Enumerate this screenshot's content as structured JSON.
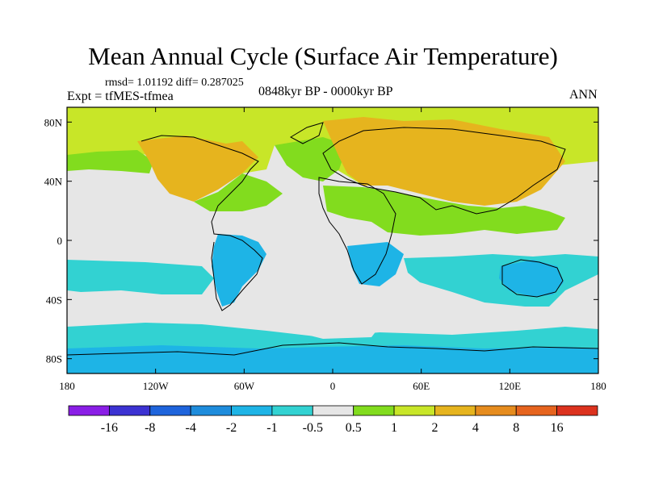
{
  "title": "Mean Annual Cycle (Surface Air Temperature)",
  "stats": "rmsd= 1.01192 diff= 0.287025",
  "experiment": "Expt = tfMES-tfmea",
  "period": "0848kyr BP - 0000kyr BP",
  "season": "ANN",
  "lon_ticks": [
    {
      "lon": -180,
      "label": "180"
    },
    {
      "lon": -120,
      "label": "120W"
    },
    {
      "lon": -60,
      "label": "60W"
    },
    {
      "lon": 0,
      "label": "0"
    },
    {
      "lon": 60,
      "label": "60E"
    },
    {
      "lon": 120,
      "label": "120E"
    },
    {
      "lon": 180,
      "label": "180"
    }
  ],
  "lat_ticks": [
    {
      "lat": 80,
      "label": "80N"
    },
    {
      "lat": 40,
      "label": "40N"
    },
    {
      "lat": 0,
      "label": "0"
    },
    {
      "lat": -40,
      "label": "40S"
    },
    {
      "lat": -80,
      "label": "80S"
    }
  ],
  "colorbar": {
    "labels": [
      "-16",
      "-8",
      "-4",
      "-2",
      "-1",
      "-0.5",
      "0.5",
      "1",
      "2",
      "4",
      "8",
      "16"
    ],
    "colors": [
      "#8a1ee6",
      "#3c32d2",
      "#1e64dc",
      "#1e8cdc",
      "#1eb4e6",
      "#32d2d2",
      "#e6e6e6",
      "#82dc1e",
      "#c8e628",
      "#e6b41e",
      "#e68c1e",
      "#e6641e",
      "#dc321e"
    ]
  },
  "colors": {
    "neutral": "#e6e6e6",
    "cool1": "#32d2d2",
    "cool2": "#1eb4e6",
    "cool3": "#1e8cdc",
    "warm1": "#82dc1e",
    "warm2": "#c8e628",
    "warm3": "#e6b41e"
  }
}
